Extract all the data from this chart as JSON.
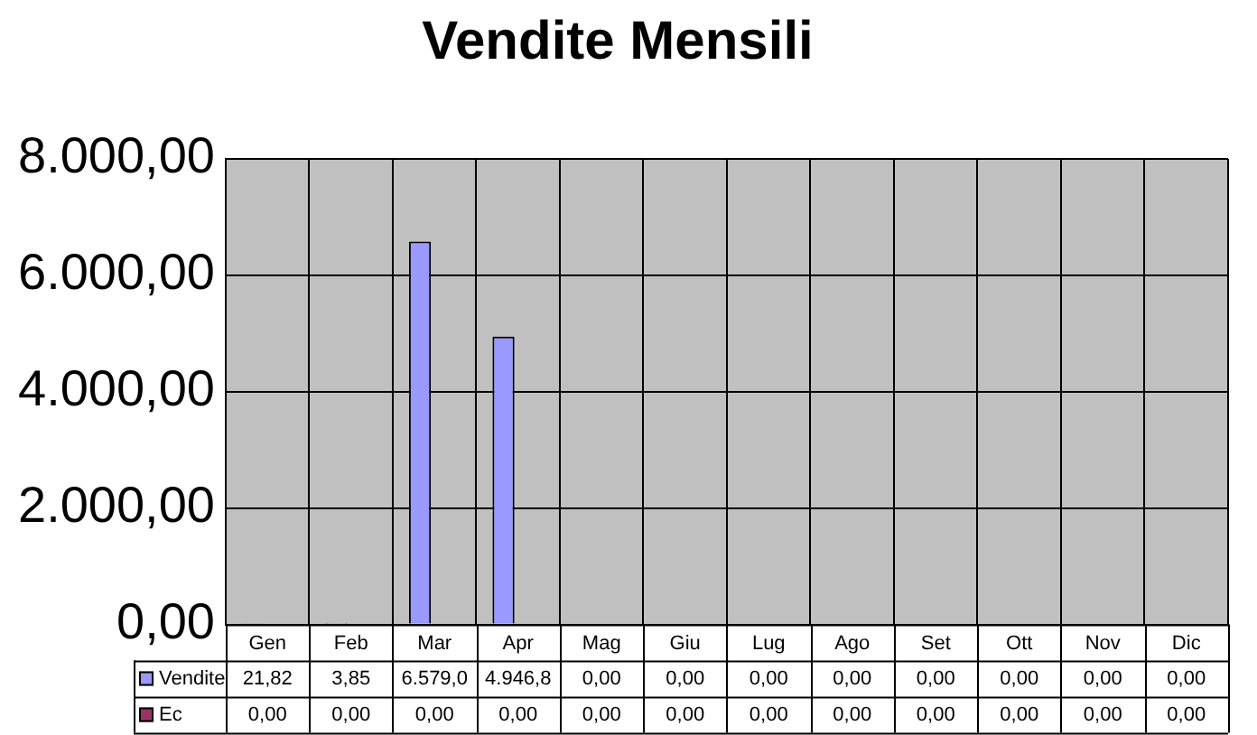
{
  "chart_data": {
    "type": "bar",
    "title": "Vendite Mensili",
    "categories": [
      "Gen",
      "Feb",
      "Mar",
      "Apr",
      "Mag",
      "Giu",
      "Lug",
      "Ago",
      "Set",
      "Ott",
      "Nov",
      "Dic"
    ],
    "series": [
      {
        "name": "Vendite",
        "color": "#9999ff",
        "values": [
          21.82,
          3.85,
          6579.0,
          4946.8,
          0,
          0,
          0,
          0,
          0,
          0,
          0,
          0
        ],
        "value_labels": [
          "21,82",
          "3,85",
          "6.579,0",
          "4.946,8",
          "0,00",
          "0,00",
          "0,00",
          "0,00",
          "0,00",
          "0,00",
          "0,00",
          "0,00"
        ]
      },
      {
        "name": "Ec",
        "color": "#993366",
        "values": [
          0,
          0,
          0,
          0,
          0,
          0,
          0,
          0,
          0,
          0,
          0,
          0
        ],
        "value_labels": [
          "0,00",
          "0,00",
          "0,00",
          "0,00",
          "0,00",
          "0,00",
          "0,00",
          "0,00",
          "0,00",
          "0,00",
          "0,00",
          "0,00"
        ]
      }
    ],
    "ylim": [
      0,
      8000
    ],
    "yticks": [
      {
        "value": 0,
        "label": "0,00"
      },
      {
        "value": 2000,
        "label": "2.000,00"
      },
      {
        "value": 4000,
        "label": "4.000,00"
      },
      {
        "value": 6000,
        "label": "6.000,00"
      },
      {
        "value": 8000,
        "label": "8.000,00"
      }
    ],
    "grid": true,
    "legend": "bottom"
  }
}
